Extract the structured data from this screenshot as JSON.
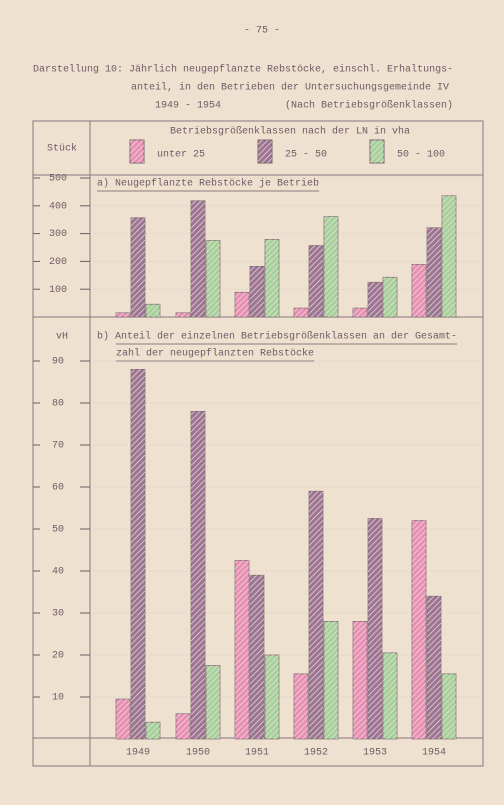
{
  "page_number": "- 75 -",
  "caption": [
    "Darstellung 10: Jährlich neugepflanzte Rebstöcke, einschl. Erhaltungs-",
    "anteil, in den Betrieben der Untersuchungsgemeinde IV"
  ],
  "period": "1949 - 1954",
  "note": "(Nach Betriebsgrößenklassen)",
  "legend_title": "Betriebsgrößenklassen nach der LN in vha",
  "chart_data": [
    {
      "type": "bar",
      "title": [
        "a) Neugepflanzte Rebstöcke je Betrieb"
      ],
      "y_label": "Stück",
      "ylim": [
        0,
        500
      ],
      "yticks": [
        100,
        200,
        300,
        400,
        500
      ],
      "grid": true,
      "series": [
        {
          "name": "unter 25",
          "color": "#e88fb6",
          "values": [
            15,
            15,
            89,
            32,
            32,
            189
          ]
        },
        {
          "name": "25 - 50",
          "color": "#9c7595",
          "values": [
            357,
            418,
            182,
            257,
            125,
            321
          ]
        },
        {
          "name": "50 - 100",
          "color": "#a6d09c",
          "values": [
            46,
            275,
            279,
            361,
            143,
            436
          ]
        }
      ]
    },
    {
      "type": "bar",
      "title": [
        "b) Anteil der einzelnen Betriebsgrößenklassen an der Gesamt-",
        "zahl der neugepflanzten Rebstöcke"
      ],
      "y_label": "vH",
      "categories": [
        "1949",
        "1950",
        "1951",
        "1952",
        "1953",
        "1954"
      ],
      "ylim": [
        0,
        100
      ],
      "yticks": [
        10,
        20,
        30,
        40,
        50,
        60,
        70,
        80,
        90
      ],
      "grid": true,
      "series": [
        {
          "color": "#e88fb6",
          "values": [
            9.5,
            6,
            42.5,
            15.5,
            28,
            52
          ]
        },
        {
          "color": "#9c7595",
          "values": [
            88,
            78,
            39,
            59,
            52.5,
            34
          ]
        },
        {
          "color": "#a6d09c",
          "values": [
            4,
            17.5,
            20,
            28,
            20.5,
            15.5
          ]
        }
      ]
    }
  ]
}
